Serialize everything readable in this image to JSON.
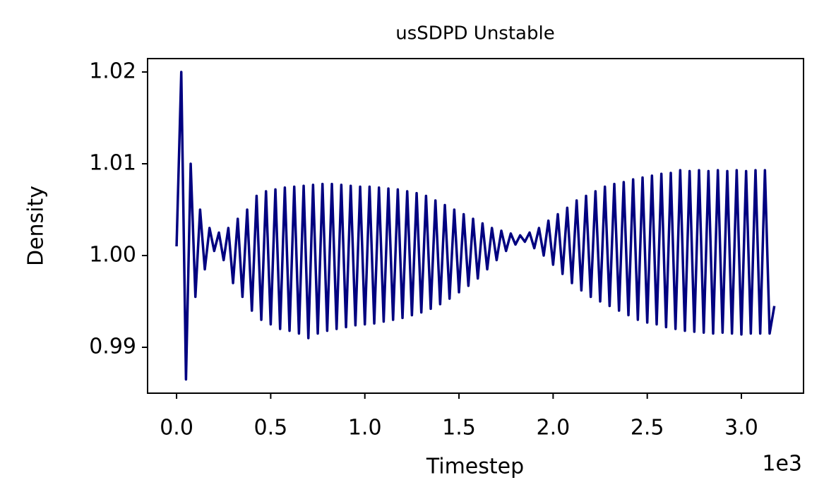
{
  "chart_data": {
    "type": "line",
    "title": "usSDPD Unstable",
    "x_label": "Timestep",
    "y_label": "Density",
    "x_offset_label": "1e3",
    "xlim": [
      -0.154,
      3.33
    ],
    "ylim": [
      0.985,
      1.02146
    ],
    "xticks": [
      {
        "value": 0,
        "label": "0.0"
      },
      0.5,
      {
        "value": 1,
        "label": "1.0"
      },
      1.5,
      {
        "value": 2,
        "label": "2.0"
      },
      2.5,
      {
        "value": 3,
        "label": "3.0"
      }
    ],
    "yticks": [
      0.99,
      {
        "value": 1,
        "label": "1.00"
      },
      1.01,
      1.02
    ],
    "series": [
      {
        "color": "#000080",
        "x": [
          0,
          0.025,
          0.05,
          0.075,
          0.1,
          0.125,
          0.15,
          0.175,
          0.2,
          0.225,
          0.25,
          0.275,
          0.3,
          0.325,
          0.35,
          0.375,
          0.4,
          0.425,
          0.45,
          0.475,
          0.5,
          0.525,
          0.55,
          0.575,
          0.6,
          0.625,
          0.65,
          0.675,
          0.7,
          0.725,
          0.75,
          0.775,
          0.8,
          0.825,
          0.85,
          0.875,
          0.9,
          0.925,
          0.95,
          0.975,
          1,
          1.025,
          1.05,
          1.075,
          1.1,
          1.125,
          1.15,
          1.175,
          1.2,
          1.225,
          1.25,
          1.275,
          1.3,
          1.325,
          1.35,
          1.375,
          1.4,
          1.425,
          1.45,
          1.475,
          1.5,
          1.525,
          1.55,
          1.575,
          1.6,
          1.625,
          1.65,
          1.675,
          1.7,
          1.725,
          1.75,
          1.775,
          1.8,
          1.825,
          1.85,
          1.875,
          1.9,
          1.925,
          1.95,
          1.975,
          2,
          2.025,
          2.05,
          2.075,
          2.1,
          2.125,
          2.15,
          2.175,
          2.2,
          2.225,
          2.25,
          2.275,
          2.3,
          2.325,
          2.35,
          2.375,
          2.4,
          2.425,
          2.45,
          2.475,
          2.5,
          2.525,
          2.55,
          2.575,
          2.6,
          2.625,
          2.65,
          2.675,
          2.7,
          2.725,
          2.75,
          2.775,
          2.8,
          2.825,
          2.85,
          2.875,
          2.9,
          2.925,
          2.95,
          2.975,
          3,
          3.025,
          3.05,
          3.075,
          3.1,
          3.125,
          3.15,
          3.175
        ],
        "values": [
          1.001,
          1.02,
          0.9865,
          1.01,
          0.9955,
          1.005,
          0.9985,
          1.003,
          1.0005,
          1.0025,
          0.9995,
          1.003,
          0.997,
          1.004,
          0.9955,
          1.005,
          0.994,
          1.0065,
          0.993,
          1.007,
          0.9925,
          1.0072,
          0.992,
          1.0074,
          0.9918,
          1.0075,
          0.9915,
          1.0076,
          0.991,
          1.0077,
          0.9915,
          1.0078,
          0.9918,
          1.0078,
          0.992,
          1.0077,
          0.9922,
          1.0076,
          0.9924,
          1.0075,
          0.9925,
          1.0075,
          0.9926,
          1.0074,
          0.9928,
          1.0073,
          0.993,
          1.0072,
          0.9932,
          1.007,
          0.9935,
          1.0068,
          0.9938,
          1.0065,
          0.9942,
          1.006,
          0.9947,
          1.0055,
          0.9953,
          1.005,
          0.996,
          1.0045,
          0.9967,
          1.004,
          0.9975,
          1.0035,
          0.9985,
          1.003,
          0.9995,
          1.0027,
          1.0005,
          1.0024,
          1.0012,
          1.0022,
          1.0015,
          1.0025,
          1.0008,
          1.003,
          1.0,
          1.0038,
          0.999,
          1.0045,
          0.998,
          1.0052,
          0.997,
          1.006,
          0.9962,
          1.0065,
          0.9955,
          1.007,
          0.995,
          1.0075,
          0.9945,
          1.0078,
          0.994,
          1.008,
          0.9935,
          1.0083,
          0.993,
          1.0085,
          0.9927,
          1.0087,
          0.9925,
          1.0089,
          0.9922,
          1.009,
          0.992,
          1.0093,
          0.9918,
          1.0092,
          0.9917,
          1.0093,
          0.9916,
          1.0092,
          0.9915,
          1.0093,
          0.9916,
          1.0092,
          0.9915,
          1.0093,
          0.9914,
          1.0092,
          0.9915,
          1.0093,
          0.9915,
          1.0093,
          0.9915,
          0.9945
        ]
      }
    ]
  }
}
